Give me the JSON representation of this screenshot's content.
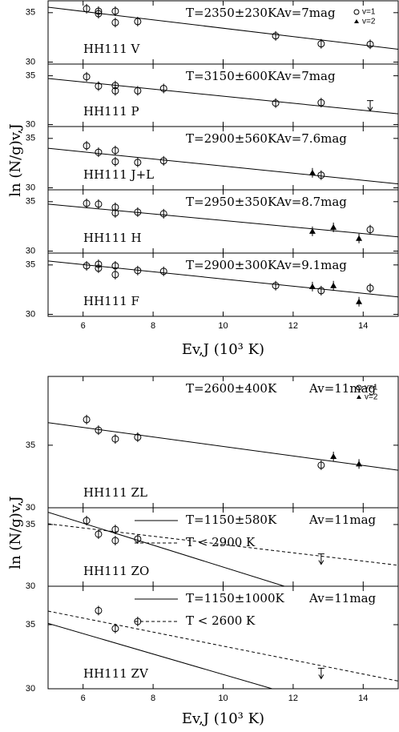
{
  "chart_data": [
    {
      "type": "scatter",
      "xlabel": "Ev,J (10³ K)",
      "ylabel": "ln (N/g)v,J",
      "xlim": [
        5,
        15
      ],
      "xticks": [
        6,
        8,
        10,
        12,
        14
      ],
      "panels": [
        {
          "label": "HH111 V",
          "temperature": "T=2350±230K",
          "extinction": "Av=7mag",
          "ylim": [
            29.8,
            36.2
          ],
          "yticks": [
            30,
            35
          ],
          "fits": [
            {
              "style": "solid",
              "x": [
                5,
                15
              ],
              "values": [
                35.55,
                31.3
              ]
            }
          ],
          "series": [
            {
              "name": "v=1",
              "marker": "circle",
              "x": [
                6.1,
                6.44,
                6.44,
                6.92,
                6.92,
                7.56,
                11.5,
                12.8,
                14.2
              ],
              "values": [
                35.4,
                35.15,
                34.9,
                35.15,
                34.0,
                34.1,
                32.65,
                31.85,
                31.8
              ]
            },
            {
              "name": "v=2",
              "marker": "triangle",
              "x": [],
              "values": []
            }
          ]
        },
        {
          "label": "HH111 P",
          "temperature": "T=3150±600K",
          "extinction": "Av=7mag",
          "ylim": [
            29.8,
            36.2
          ],
          "yticks": [
            30,
            35
          ],
          "fits": [
            {
              "style": "solid",
              "x": [
                5,
                15
              ],
              "values": [
                34.72,
                31.1
              ]
            }
          ],
          "series": [
            {
              "marker": "circle",
              "x": [
                6.1,
                6.44,
                6.92,
                6.92,
                7.56,
                8.3,
                11.5,
                12.8
              ],
              "values": [
                34.9,
                33.94,
                34.0,
                33.46,
                33.46,
                33.7,
                32.2,
                32.25
              ]
            }
          ],
          "upper_limits": {
            "x": [
              14.2
            ],
            "values": [
              31.8
            ]
          }
        },
        {
          "label": "HH111 J+L",
          "temperature": "T=2900±560K",
          "extinction": "Av=7.6mag",
          "ylim": [
            29.8,
            36.2
          ],
          "yticks": [
            30,
            35
          ],
          "fits": [
            {
              "style": "solid",
              "x": [
                5,
                15
              ],
              "values": [
                34.0,
                30.4
              ]
            }
          ],
          "series": [
            {
              "marker": "circle",
              "x": [
                6.1,
                6.44,
                6.92,
                6.92,
                7.56,
                8.3,
                12.8
              ],
              "values": [
                34.26,
                33.6,
                33.78,
                32.65,
                32.57,
                32.73,
                31.28
              ]
            },
            {
              "marker": "triangle",
              "x": [
                12.55
              ],
              "values": [
                31.52
              ]
            }
          ]
        },
        {
          "label": "HH111 H",
          "temperature": "T=2950±350K",
          "extinction": "Av=8.7mag",
          "ylim": [
            29.8,
            36.2
          ],
          "yticks": [
            30,
            35
          ],
          "fits": [
            {
              "style": "solid",
              "x": [
                5,
                15
              ],
              "values": [
                34.75,
                31.44
              ]
            }
          ],
          "series": [
            {
              "marker": "circle",
              "x": [
                6.1,
                6.44,
                6.92,
                6.92,
                7.56,
                8.3,
                14.2
              ],
              "values": [
                34.83,
                34.75,
                34.43,
                33.86,
                33.94,
                33.78,
                32.17
              ]
            },
            {
              "marker": "triangle",
              "x": [
                12.55,
                13.15,
                13.88
              ],
              "values": [
                32.0,
                32.4,
                31.28
              ]
            }
          ]
        },
        {
          "label": "HH111 F",
          "temperature": "T=2900±300K",
          "extinction": "Av=9.1mag",
          "ylim": [
            29.8,
            36.2
          ],
          "yticks": [
            30,
            35
          ],
          "fits": [
            {
              "style": "solid",
              "x": [
                5,
                15
              ],
              "values": [
                35.4,
                31.76
              ]
            }
          ],
          "series": [
            {
              "marker": "circle",
              "x": [
                6.1,
                6.44,
                6.44,
                6.92,
                6.92,
                7.56,
                8.3,
                11.5,
                12.8,
                14.2
              ],
              "values": [
                34.91,
                35.07,
                34.67,
                34.91,
                34.02,
                34.43,
                34.35,
                32.9,
                32.4,
                32.65
              ]
            },
            {
              "marker": "triangle",
              "x": [
                12.55,
                13.15,
                13.88
              ],
              "values": [
                32.81,
                32.9,
                31.28
              ]
            }
          ]
        }
      ]
    },
    {
      "type": "scatter",
      "xlabel": "Ev,J (10³ K)",
      "ylabel": "ln (N/g)v,J",
      "xlim": [
        5,
        15
      ],
      "xticks": [
        6,
        8,
        10,
        12,
        14
      ],
      "panels": [
        {
          "label": "HH111 ZL",
          "temperature": "T=2600±400K",
          "extinction": "Av=11mag",
          "ylim": [
            30,
            40.5
          ],
          "yticks": [
            30,
            35
          ],
          "fits": [
            {
              "style": "solid",
              "x": [
                5,
                15
              ],
              "values": [
                36.8,
                33.0
              ]
            }
          ],
          "series": [
            {
              "name": "v=1",
              "marker": "circle",
              "x": [
                6.1,
                6.44,
                6.92,
                7.56,
                12.8
              ],
              "values": [
                37.05,
                36.2,
                35.5,
                35.64,
                33.4
              ]
            },
            {
              "name": "v=2",
              "marker": "triangle",
              "x": [
                13.15,
                13.88
              ],
              "values": [
                34.1,
                33.5
              ]
            }
          ]
        },
        {
          "label": "HH111 ZO",
          "extinction": "Av=11mag",
          "ylim": [
            30,
            36.36
          ],
          "yticks": [
            30,
            35
          ],
          "fits": [
            {
              "name": "T=1150±580K",
              "style": "solid",
              "x": [
                5,
                11.75
              ],
              "values": [
                36.0,
                30.0
              ]
            },
            {
              "name": "T < 2900 K",
              "style": "dashed",
              "x": [
                5,
                15
              ],
              "values": [
                35.06,
                31.7
              ]
            }
          ],
          "series": [
            {
              "marker": "circle",
              "x": [
                6.1,
                6.44,
                6.92,
                6.92,
                7.56
              ],
              "values": [
                35.32,
                34.22,
                34.6,
                33.7,
                33.83
              ]
            }
          ],
          "upper_limits": {
            "x": [
              12.8
            ],
            "values": [
              32.1
            ]
          }
        },
        {
          "label": "HH111 ZV",
          "extinction": "Av=11mag",
          "ylim": [
            30,
            38
          ],
          "yticks": [
            30,
            35
          ],
          "fits": [
            {
              "name": "T=1150±1000K",
              "style": "solid",
              "x": [
                5,
                11.4
              ],
              "values": [
                35.1,
                30.0
              ]
            },
            {
              "name": "T < 2600 K",
              "style": "dashed",
              "x": [
                5,
                15
              ],
              "values": [
                36.06,
                30.6
              ]
            }
          ],
          "series": [
            {
              "marker": "circle",
              "x": [
                6.44,
                6.92,
                7.56
              ],
              "values": [
                36.1,
                34.7,
                35.25
              ]
            }
          ],
          "upper_limits": {
            "x": [
              12.8
            ],
            "values": [
              31.1
            ]
          }
        }
      ]
    }
  ]
}
